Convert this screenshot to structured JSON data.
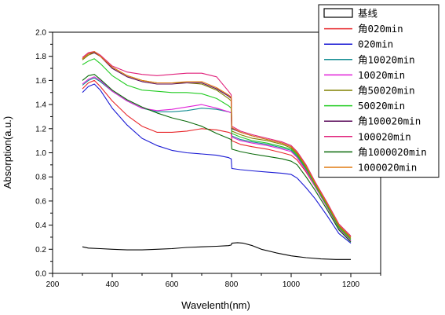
{
  "chart_data": {
    "type": "line",
    "title": "",
    "xlabel": "Wavelenth(nm)",
    "ylabel": "Absorption(a.u.)",
    "xlim": [
      200,
      1300
    ],
    "ylim": [
      0.0,
      2.0
    ],
    "x_ticks": [
      "200",
      "400",
      "600",
      "800",
      "1000",
      "1200"
    ],
    "y_ticks": [
      "0.0",
      "0.2",
      "0.4",
      "0.6",
      "0.8",
      "1.0",
      "1.2",
      "1.4",
      "1.6",
      "1.8",
      "2.0"
    ],
    "legend_position": "top-right",
    "grid": false,
    "series": [
      {
        "name": "基线",
        "color": "#000000",
        "x": [
          300,
          320,
          360,
          400,
          450,
          500,
          550,
          600,
          650,
          700,
          750,
          790,
          799,
          801,
          820,
          840,
          870,
          900,
          950,
          1000,
          1050,
          1100,
          1150,
          1200
        ],
        "y": [
          0.22,
          0.21,
          0.205,
          0.2,
          0.195,
          0.195,
          0.2,
          0.205,
          0.215,
          0.22,
          0.225,
          0.23,
          0.235,
          0.25,
          0.255,
          0.25,
          0.23,
          0.2,
          0.17,
          0.145,
          0.13,
          0.12,
          0.115,
          0.115
        ]
      },
      {
        "name": "角020min",
        "color": "#e8262a",
        "x": [
          300,
          320,
          340,
          360,
          400,
          450,
          500,
          550,
          600,
          650,
          700,
          750,
          790,
          799,
          801,
          830,
          870,
          920,
          970,
          1000,
          1020,
          1050,
          1080,
          1120,
          1160,
          1200
        ],
        "y": [
          1.53,
          1.58,
          1.6,
          1.55,
          1.43,
          1.31,
          1.22,
          1.17,
          1.17,
          1.18,
          1.2,
          1.19,
          1.17,
          1.16,
          1.1,
          1.07,
          1.05,
          1.03,
          1.0,
          0.98,
          0.94,
          0.84,
          0.72,
          0.56,
          0.38,
          0.27
        ]
      },
      {
        "name": "020min",
        "color": "#1a1ad4",
        "x": [
          300,
          320,
          340,
          360,
          400,
          450,
          500,
          550,
          600,
          650,
          700,
          750,
          790,
          799,
          801,
          830,
          870,
          920,
          970,
          1000,
          1020,
          1050,
          1080,
          1120,
          1160,
          1200
        ],
        "y": [
          1.5,
          1.55,
          1.57,
          1.52,
          1.37,
          1.23,
          1.12,
          1.06,
          1.02,
          1.0,
          0.99,
          0.98,
          0.96,
          0.95,
          0.87,
          0.86,
          0.85,
          0.84,
          0.83,
          0.82,
          0.79,
          0.71,
          0.62,
          0.48,
          0.33,
          0.25
        ]
      },
      {
        "name": "角10020min",
        "color": "#138d93",
        "x": [
          300,
          320,
          340,
          360,
          400,
          450,
          500,
          550,
          600,
          650,
          700,
          750,
          790,
          799,
          801,
          830,
          870,
          920,
          970,
          1000,
          1020,
          1050,
          1080,
          1120,
          1160,
          1200
        ],
        "y": [
          1.56,
          1.6,
          1.62,
          1.59,
          1.51,
          1.43,
          1.37,
          1.34,
          1.34,
          1.35,
          1.37,
          1.36,
          1.34,
          1.33,
          1.14,
          1.11,
          1.09,
          1.07,
          1.04,
          1.02,
          0.97,
          0.86,
          0.73,
          0.56,
          0.37,
          0.27
        ]
      },
      {
        "name": "10020min",
        "color": "#e020d8",
        "x": [
          300,
          320,
          340,
          360,
          400,
          450,
          500,
          550,
          600,
          650,
          700,
          750,
          790,
          799,
          801,
          830,
          870,
          920,
          970,
          1000,
          1020,
          1050,
          1080,
          1120,
          1160,
          1200
        ],
        "y": [
          1.57,
          1.61,
          1.63,
          1.6,
          1.51,
          1.43,
          1.37,
          1.35,
          1.36,
          1.38,
          1.4,
          1.37,
          1.34,
          1.33,
          1.13,
          1.1,
          1.08,
          1.06,
          1.03,
          1.01,
          0.96,
          0.85,
          0.72,
          0.55,
          0.37,
          0.27
        ]
      },
      {
        "name": "角50020min",
        "color": "#808000",
        "x": [
          300,
          320,
          340,
          360,
          400,
          450,
          500,
          550,
          600,
          650,
          700,
          750,
          790,
          799,
          801,
          830,
          870,
          920,
          970,
          1000,
          1020,
          1050,
          1080,
          1120,
          1160,
          1200
        ],
        "y": [
          1.77,
          1.81,
          1.83,
          1.8,
          1.71,
          1.64,
          1.6,
          1.58,
          1.58,
          1.58,
          1.57,
          1.52,
          1.45,
          1.43,
          1.18,
          1.15,
          1.12,
          1.1,
          1.07,
          1.04,
          0.99,
          0.88,
          0.74,
          0.57,
          0.39,
          0.29
        ]
      },
      {
        "name": "50020min",
        "color": "#22cc22",
        "x": [
          300,
          320,
          340,
          360,
          400,
          450,
          500,
          550,
          600,
          650,
          700,
          750,
          790,
          799,
          801,
          830,
          870,
          920,
          970,
          1000,
          1020,
          1050,
          1080,
          1120,
          1160,
          1200
        ],
        "y": [
          1.73,
          1.76,
          1.78,
          1.74,
          1.64,
          1.56,
          1.52,
          1.51,
          1.5,
          1.5,
          1.49,
          1.45,
          1.39,
          1.37,
          1.16,
          1.13,
          1.1,
          1.08,
          1.05,
          1.03,
          0.98,
          0.87,
          0.73,
          0.56,
          0.38,
          0.28
        ]
      },
      {
        "name": "角100020min",
        "color": "#5a0a5a",
        "x": [
          300,
          320,
          340,
          360,
          400,
          450,
          500,
          550,
          600,
          650,
          700,
          750,
          790,
          799,
          801,
          830,
          870,
          920,
          970,
          1000,
          1020,
          1050,
          1080,
          1120,
          1160,
          1200
        ],
        "y": [
          1.78,
          1.82,
          1.83,
          1.8,
          1.7,
          1.63,
          1.59,
          1.57,
          1.57,
          1.58,
          1.58,
          1.53,
          1.47,
          1.45,
          1.2,
          1.17,
          1.14,
          1.11,
          1.08,
          1.05,
          1.0,
          0.89,
          0.75,
          0.58,
          0.4,
          0.3
        ]
      },
      {
        "name": "100020min",
        "color": "#e0207a",
        "x": [
          300,
          320,
          340,
          360,
          400,
          450,
          500,
          550,
          600,
          650,
          700,
          750,
          790,
          799,
          801,
          830,
          870,
          920,
          970,
          1000,
          1020,
          1050,
          1080,
          1120,
          1160,
          1200
        ],
        "y": [
          1.79,
          1.83,
          1.84,
          1.81,
          1.72,
          1.67,
          1.65,
          1.64,
          1.65,
          1.66,
          1.66,
          1.63,
          1.51,
          1.48,
          1.22,
          1.18,
          1.15,
          1.12,
          1.09,
          1.06,
          1.01,
          0.9,
          0.76,
          0.59,
          0.41,
          0.31
        ]
      },
      {
        "name": "角1000020min",
        "color": "#0a6a0a",
        "x": [
          300,
          320,
          340,
          360,
          400,
          450,
          500,
          550,
          600,
          650,
          700,
          750,
          790,
          799,
          801,
          830,
          870,
          920,
          970,
          1000,
          1020,
          1050,
          1080,
          1120,
          1160,
          1200
        ],
        "y": [
          1.6,
          1.64,
          1.65,
          1.61,
          1.52,
          1.44,
          1.38,
          1.33,
          1.29,
          1.26,
          1.22,
          1.16,
          1.12,
          1.11,
          1.03,
          1.01,
          0.99,
          0.97,
          0.95,
          0.93,
          0.9,
          0.8,
          0.69,
          0.53,
          0.36,
          0.26
        ]
      },
      {
        "name": "1000020min",
        "color": "#e07a10",
        "x": [
          300,
          320,
          340,
          360,
          400,
          450,
          500,
          550,
          600,
          650,
          700,
          750,
          790,
          799,
          801,
          830,
          870,
          920,
          970,
          1000,
          1020,
          1050,
          1080,
          1120,
          1160,
          1200
        ],
        "y": [
          1.78,
          1.82,
          1.84,
          1.8,
          1.71,
          1.64,
          1.6,
          1.58,
          1.58,
          1.59,
          1.59,
          1.54,
          1.48,
          1.46,
          1.21,
          1.17,
          1.14,
          1.11,
          1.08,
          1.05,
          1.0,
          0.89,
          0.75,
          0.58,
          0.4,
          0.3
        ]
      }
    ]
  }
}
